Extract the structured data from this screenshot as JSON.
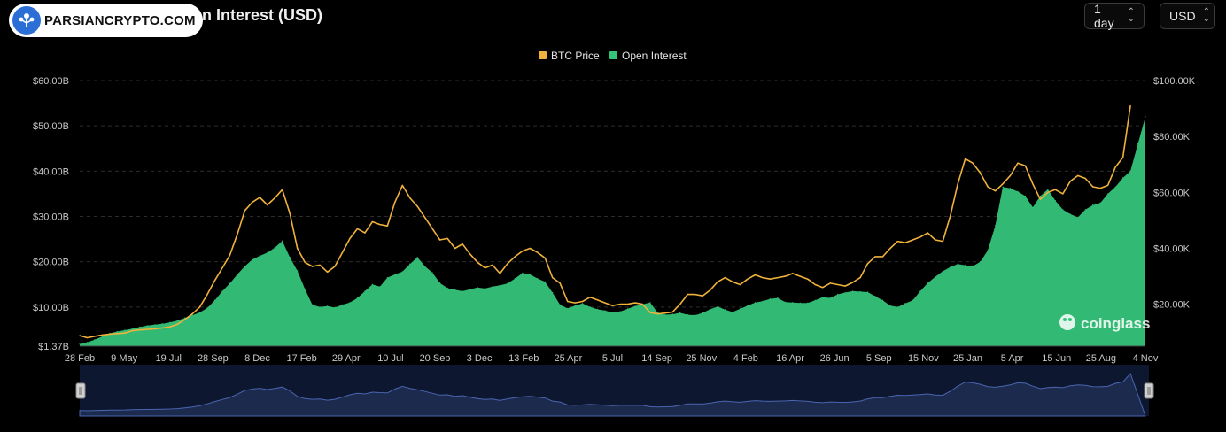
{
  "header": {
    "title": "Bitcoin BTC Futures Open Interest (USD)",
    "logo_text": "PARSIANCRYPTO.COM",
    "interval_select": "1 day",
    "currency_select": "USD"
  },
  "watermark": "coinglass",
  "colors": {
    "price": "#f0b23b",
    "oi": "#35c47a",
    "navigator_fill": "#1c2a4d",
    "navigator_line": "#4a65b0"
  },
  "chart_data": {
    "type": "area",
    "legend": [
      {
        "name": "BTC Price",
        "color": "#f0b23b"
      },
      {
        "name": "Open Interest",
        "color": "#35c47a"
      }
    ],
    "legend_position": "top-center",
    "x_ticks": [
      "28 Feb",
      "9 May",
      "19 Jul",
      "28 Sep",
      "8 Dec",
      "17 Feb",
      "29 Apr",
      "10 Jul",
      "20 Sep",
      "3 Dec",
      "13 Feb",
      "25 Apr",
      "5 Jul",
      "14 Sep",
      "25 Nov",
      "4 Feb",
      "16 Apr",
      "26 Jun",
      "5 Sep",
      "15 Nov",
      "25 Jan",
      "5 Apr",
      "15 Jun",
      "25 Aug",
      "4 Nov"
    ],
    "y_left_ticks": [
      "$1.37B",
      "$10.00B",
      "$20.00B",
      "$30.00B",
      "$40.00B",
      "$50.00B",
      "$60.00B"
    ],
    "y_left_tick_values": [
      1.37,
      10,
      20,
      30,
      40,
      50,
      60
    ],
    "y_left_range": [
      1.37,
      60
    ],
    "y_right_ticks": [
      "$20.00K",
      "$40.00K",
      "$60.00K",
      "$80.00K",
      "$100.00K"
    ],
    "y_right_tick_values": [
      20,
      40,
      60,
      80,
      100
    ],
    "y_right_range": [
      5,
      100
    ],
    "grid": true,
    "series": [
      {
        "name": "Open Interest",
        "axis": "left",
        "unit": "USD billions",
        "values": [
          1.8,
          2.2,
          2.8,
          3.5,
          4.2,
          4.6,
          4.9,
          5.2,
          5.6,
          5.9,
          6.1,
          6.3,
          6.6,
          7.0,
          7.6,
          8.2,
          8.8,
          9.8,
          11.5,
          13.5,
          15.2,
          17.2,
          19.0,
          20.5,
          21.3,
          22.0,
          23.1,
          24.6,
          21.0,
          18.0,
          14.0,
          10.5,
          10.0,
          10.2,
          9.9,
          10.5,
          11.0,
          12.0,
          13.5,
          15.0,
          14.5,
          16.5,
          17.2,
          17.8,
          19.5,
          21.0,
          19.0,
          17.6,
          15.3,
          14.2,
          13.8,
          13.5,
          13.9,
          14.3,
          14.1,
          14.5,
          14.8,
          15.2,
          16.3,
          17.5,
          17.2,
          16.3,
          15.6,
          13.2,
          10.5,
          9.7,
          10.3,
          10.8,
          10.0,
          9.5,
          9.2,
          8.8,
          9.0,
          9.6,
          10.2,
          10.6,
          11.0,
          8.8,
          8.3,
          8.4,
          8.7,
          8.3,
          8.2,
          8.7,
          9.5,
          10.1,
          9.4,
          8.9,
          9.6,
          10.3,
          11.0,
          11.3,
          11.8,
          12.0,
          11.1,
          11.0,
          10.9,
          10.9,
          11.5,
          12.2,
          12.0,
          12.8,
          13.2,
          13.5,
          13.4,
          13.3,
          12.4,
          11.5,
          10.3,
          10.0,
          10.8,
          11.5,
          13.5,
          15.3,
          16.7,
          17.9,
          18.8,
          19.5,
          19.2,
          19.0,
          20.0,
          22.5,
          28.0,
          36.5,
          36.2,
          35.5,
          34.5,
          32.0,
          34.5,
          36.0,
          33.5,
          31.5,
          30.5,
          29.8,
          31.5,
          32.5,
          33.0,
          35.0,
          36.5,
          38.5,
          40.0,
          46.0,
          52.0
        ]
      },
      {
        "name": "BTC Price",
        "axis": "right",
        "unit": "USD thousands",
        "values": [
          8.8,
          8.0,
          8.5,
          9.0,
          9.3,
          9.5,
          9.7,
          10.5,
          10.8,
          11.0,
          11.2,
          11.5,
          11.9,
          12.8,
          14.5,
          16.5,
          19.0,
          23.5,
          28.5,
          33.0,
          37.5,
          45.0,
          53.5,
          56.5,
          58.2,
          55.5,
          58.0,
          61.0,
          52.5,
          40.0,
          35.0,
          33.5,
          34.0,
          31.5,
          33.5,
          38.5,
          43.5,
          47.0,
          45.5,
          49.5,
          48.5,
          48.0,
          56.5,
          62.5,
          58.0,
          55.0,
          51.0,
          47.0,
          43.0,
          43.5,
          40.0,
          41.5,
          38.0,
          35.0,
          33.0,
          34.0,
          31.0,
          34.5,
          37.0,
          39.0,
          40.0,
          38.5,
          36.5,
          29.5,
          27.5,
          21.0,
          20.5,
          21.0,
          22.5,
          21.5,
          20.5,
          19.5,
          20.0,
          20.0,
          20.5,
          20.0,
          17.0,
          16.5,
          16.8,
          17.2,
          20.0,
          23.5,
          23.5,
          23.0,
          25.0,
          28.0,
          29.5,
          28.0,
          27.0,
          29.0,
          30.5,
          29.5,
          29.0,
          29.5,
          30.0,
          31.0,
          30.0,
          29.0,
          27.0,
          26.0,
          27.5,
          27.0,
          26.5,
          27.8,
          29.5,
          34.5,
          37.0,
          37.0,
          40.0,
          42.5,
          42.0,
          43.0,
          44.0,
          45.5,
          43.0,
          42.5,
          51.5,
          63.0,
          72.0,
          70.5,
          67.0,
          62.0,
          60.5,
          63.0,
          66.0,
          70.5,
          69.5,
          63.0,
          57.5,
          60.0,
          61.0,
          59.5,
          64.0,
          66.0,
          65.0,
          62.0,
          61.5,
          62.5,
          69.0,
          72.5,
          91.0
        ]
      }
    ],
    "navigator": true
  }
}
